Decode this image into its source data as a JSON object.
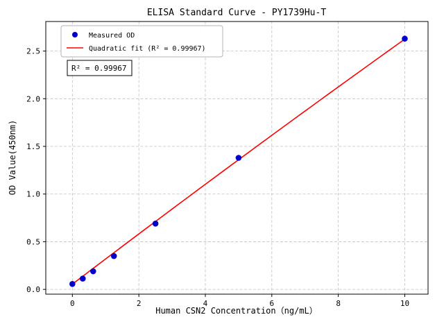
{
  "chart_data": {
    "type": "scatter",
    "title": "ELISA Standard Curve - PY1739Hu-T",
    "xlabel": "Human CSN2 Concentration（ng/mL）",
    "ylabel": "OD Value(450nm)",
    "xlim": [
      -0.8,
      10.7
    ],
    "ylim": [
      -0.05,
      2.81
    ],
    "grid": true,
    "grid_style": "dashed",
    "xticks": {
      "values": [
        0,
        2,
        4,
        6,
        8,
        10
      ],
      "labels": [
        "0",
        "2",
        "4",
        "6",
        "8",
        "10"
      ]
    },
    "yticks": {
      "values": [
        0,
        0.5,
        1.0,
        1.5,
        2.0,
        2.5
      ],
      "labels": [
        "0.0",
        "0.5",
        "1.0",
        "1.5",
        "2.0",
        "2.5"
      ]
    },
    "series": [
      {
        "name": "Measured OD",
        "type": "scatter",
        "color": "#0000cd",
        "x": [
          0,
          0.312,
          0.625,
          1.25,
          2.5,
          5,
          10
        ],
        "y": [
          0.057,
          0.113,
          0.19,
          0.35,
          0.69,
          1.38,
          2.63
        ]
      },
      {
        "name": "Quadratic fit",
        "type": "quadratic_fit",
        "color": "#ff0000",
        "coefficients": {
          "a": -0.0008,
          "b": 0.265,
          "c": 0.055
        },
        "x_range": [
          0,
          10
        ],
        "r_squared": 0.99967
      }
    ],
    "legend": {
      "position": "upper-left",
      "entries": [
        {
          "label": "Measured OD"
        },
        {
          "label": "Quadratic fit (R² = 0.99967)"
        }
      ]
    },
    "annotation": {
      "text": "R² = 0.99967"
    }
  }
}
